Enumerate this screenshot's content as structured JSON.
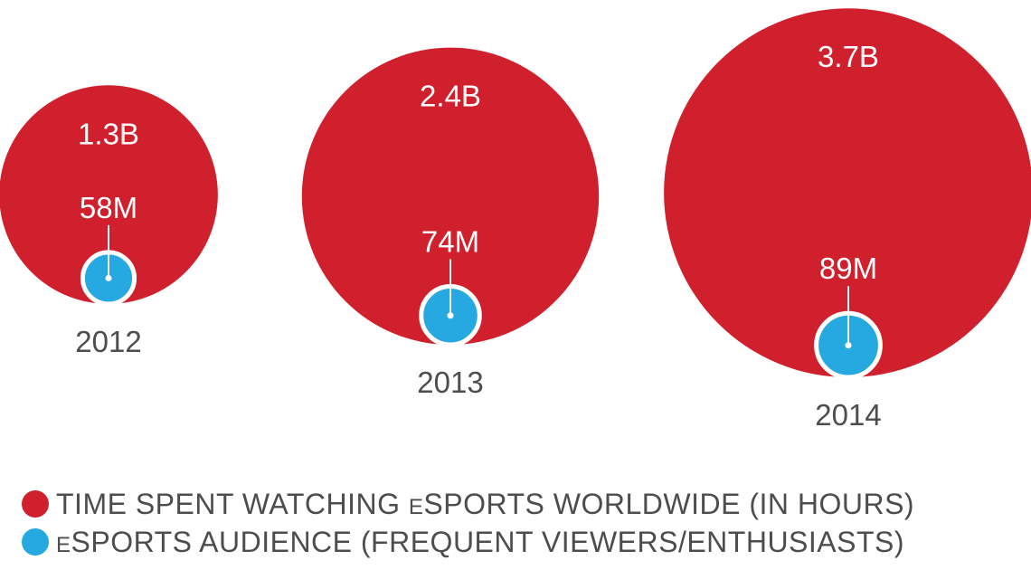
{
  "chart_data": {
    "type": "bubble",
    "categories": [
      "2012",
      "2013",
      "2014"
    ],
    "series": [
      {
        "name": "TIME SPENT WATCHING eSPORTS WORLDWIDE (IN HOURS)",
        "color": "#d0202d",
        "values": [
          1.3,
          2.4,
          3.7
        ],
        "units": "billion hours",
        "labels": [
          "1.3B",
          "2.4B",
          "3.7B"
        ]
      },
      {
        "name": "eSPORTS AUDIENCE (FREQUENT VIEWERS/ENTHUSIASTS)",
        "color": "#26a8e0",
        "values": [
          58,
          74,
          89
        ],
        "units": "million viewers",
        "labels": [
          "58M",
          "74M",
          "89M"
        ]
      }
    ]
  },
  "legend": {
    "items": [
      {
        "prefix": "",
        "small": "",
        "rest": "TIME SPENT WATCHING ",
        "small2": "E",
        "rest2": "SPORTS WORLDWIDE (IN HOURS)",
        "color": "#d0202d"
      },
      {
        "prefix": "",
        "small": "E",
        "rest": "SPORTS AUDIENCE (FREQUENT VIEWERS/ENTHUSIASTS)",
        "small2": "",
        "rest2": "",
        "color": "#26a8e0"
      }
    ]
  }
}
